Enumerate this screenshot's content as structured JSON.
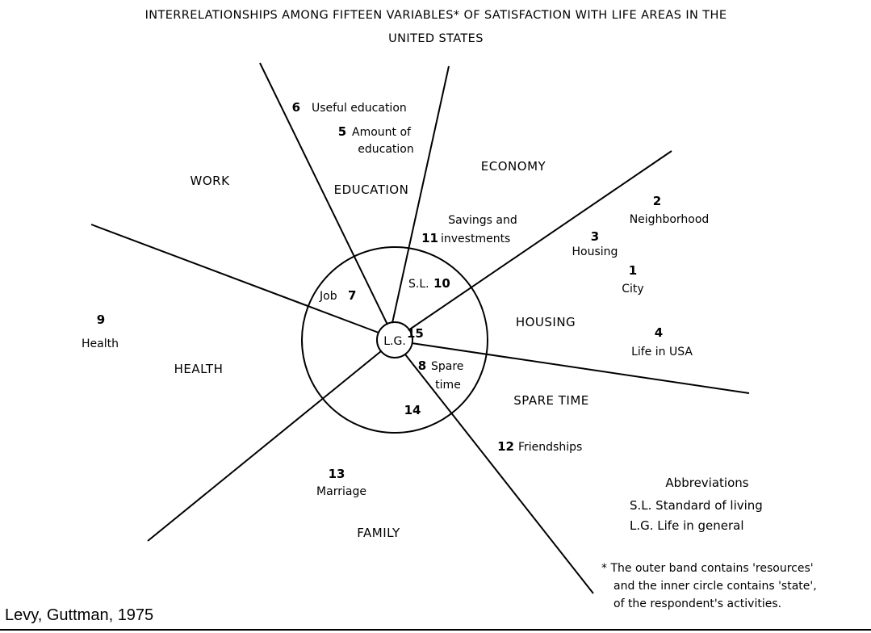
{
  "title": {
    "line1": "INTERRELATIONSHIPS AMONG FIFTEEN VARIABLES* OF SATISFACTION WITH LIFE AREAS IN THE",
    "line2": "UNITED STATES"
  },
  "regions": {
    "work": "WORK",
    "education": "EDUCATION",
    "economy": "ECONOMY",
    "housing": "HOUSING",
    "spare_time": "SPARE TIME",
    "family": "FAMILY",
    "health": "HEALTH"
  },
  "variables": {
    "v1": {
      "num": "1",
      "label": "City"
    },
    "v2": {
      "num": "2",
      "label": "Neighborhood"
    },
    "v3": {
      "num": "3",
      "label": "Housing"
    },
    "v4": {
      "num": "4",
      "label": "Life in USA"
    },
    "v5": {
      "num": "5",
      "label1": "Amount of",
      "label2": "education"
    },
    "v6": {
      "num": "6",
      "label": "Useful education"
    },
    "v7": {
      "num": "7",
      "label": "Job"
    },
    "v8": {
      "num": "8",
      "label1": "Spare",
      "label2": "time"
    },
    "v9": {
      "num": "9",
      "label": "Health"
    },
    "v10": {
      "num": "10",
      "label": "S.L."
    },
    "v11": {
      "num": "11",
      "label1": "Savings and",
      "label2": "investments"
    },
    "v12": {
      "num": "12",
      "label": "Friendships"
    },
    "v13": {
      "num": "13",
      "label": "Marriage"
    },
    "v14": {
      "num": "14"
    },
    "v15": {
      "num": "15",
      "label": "L.G."
    }
  },
  "abbreviations": {
    "heading": "Abbreviations",
    "sl": "S.L. Standard of living",
    "lg": "L.G. Life in general"
  },
  "footnote": {
    "line1": "* The outer band contains 'resources'",
    "line2": "and the inner circle contains 'state',",
    "line3": "of the respondent's activities."
  },
  "credit": "Levy, Guttman, 1975"
}
